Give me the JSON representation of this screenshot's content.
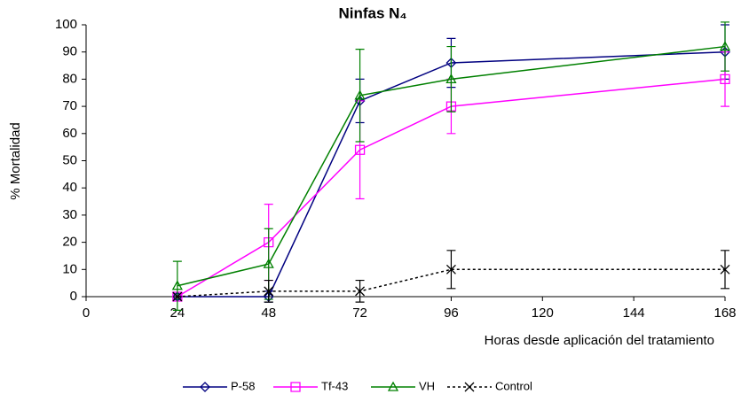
{
  "chart_data": {
    "type": "line",
    "title": "Ninfas N₄",
    "x_label": "Horas desde aplicación del tratamiento",
    "y_label": "% Mortalidad",
    "x": [
      24,
      48,
      72,
      96,
      168
    ],
    "series": [
      {
        "name": "P-58",
        "color": "#000080",
        "marker": "diamond",
        "dash": "solid",
        "values": [
          0,
          0,
          72,
          86,
          90
        ],
        "errors": [
          1,
          2,
          8,
          9,
          10
        ]
      },
      {
        "name": "Tf-43",
        "color": "#ff00ff",
        "marker": "square",
        "dash": "solid",
        "values": [
          0,
          20,
          54,
          70,
          80
        ],
        "errors": [
          0,
          14,
          18,
          10,
          10
        ]
      },
      {
        "name": "VH",
        "color": "#008000",
        "marker": "triangle",
        "dash": "solid",
        "values": [
          4,
          12,
          74,
          80,
          92
        ],
        "errors": [
          9,
          13,
          17,
          12,
          9
        ]
      },
      {
        "name": "Control",
        "color": "#000000",
        "marker": "x",
        "dash": "dotted",
        "values": [
          0,
          2,
          2,
          10,
          10
        ],
        "errors": [
          0,
          4,
          4,
          7,
          7
        ]
      }
    ],
    "xlim": [
      0,
      168
    ],
    "xticks": [
      0,
      24,
      48,
      72,
      96,
      120,
      144,
      168
    ],
    "ylim": [
      0,
      100
    ],
    "yticks": [
      0,
      10,
      20,
      30,
      40,
      50,
      60,
      70,
      80,
      90,
      100
    ],
    "grid": false,
    "legend": "bottom"
  }
}
